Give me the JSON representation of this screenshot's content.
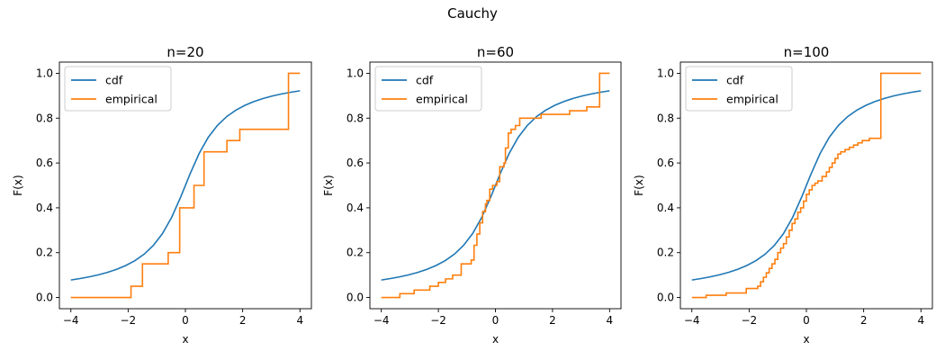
{
  "suptitle": "Cauchy",
  "colors": {
    "cdf": "#1f77b4",
    "empirical": "#ff7f0e"
  },
  "chart_data": [
    {
      "type": "line",
      "title": "n=20",
      "xlabel": "x",
      "ylabel": "F(x)",
      "xlim": [
        -4.4,
        4.4
      ],
      "ylim": [
        -0.05,
        1.05
      ],
      "xticks": [
        -4,
        -2,
        0,
        2,
        4
      ],
      "xtick_labels": [
        "−4",
        "−2",
        "0",
        "2",
        "4"
      ],
      "yticks": [
        0.0,
        0.2,
        0.4,
        0.6,
        0.8,
        1.0
      ],
      "ytick_labels": [
        "0.0",
        "0.2",
        "0.4",
        "0.6",
        "0.8",
        "1.0"
      ],
      "legend": {
        "placement": "upper-left",
        "entries": [
          "cdf",
          "empirical"
        ]
      },
      "series": [
        {
          "name": "cdf",
          "kind": "cauchy-cdf",
          "x_range": [
            -4,
            4
          ]
        },
        {
          "name": "empirical",
          "kind": "step",
          "x": [
            -4,
            -1.9,
            -1.5,
            -0.6,
            -0.2,
            0.3,
            0.65,
            1.45,
            1.9,
            3.6,
            4
          ],
          "y": [
            0,
            0.05,
            0.15,
            0.2,
            0.4,
            0.5,
            0.65,
            0.7,
            0.75,
            1.0,
            1.0
          ]
        }
      ]
    },
    {
      "type": "line",
      "title": "n=60",
      "xlabel": "x",
      "ylabel": "F(x)",
      "xlim": [
        -4.4,
        4.4
      ],
      "ylim": [
        -0.05,
        1.05
      ],
      "xticks": [
        -4,
        -2,
        0,
        2,
        4
      ],
      "xtick_labels": [
        "−4",
        "−2",
        "0",
        "2",
        "4"
      ],
      "yticks": [
        0.0,
        0.2,
        0.4,
        0.6,
        0.8,
        1.0
      ],
      "ytick_labels": [
        "0.0",
        "0.2",
        "0.4",
        "0.6",
        "0.8",
        "1.0"
      ],
      "legend": {
        "placement": "upper-left",
        "entries": [
          "cdf",
          "empirical"
        ]
      },
      "series": [
        {
          "name": "cdf",
          "kind": "cauchy-cdf",
          "x_range": [
            -4,
            4
          ]
        },
        {
          "name": "empirical",
          "kind": "step",
          "x": [
            -4,
            -3.35,
            -2.85,
            -2.3,
            -2.0,
            -1.75,
            -1.5,
            -1.2,
            -0.85,
            -0.75,
            -0.65,
            -0.55,
            -0.45,
            -0.35,
            -0.3,
            -0.2,
            -0.1,
            0.05,
            0.15,
            0.3,
            0.35,
            0.45,
            0.55,
            0.7,
            0.85,
            1.0,
            1.35,
            1.6,
            2.6,
            3.2,
            3.65,
            4
          ],
          "y": [
            0,
            0.017,
            0.033,
            0.05,
            0.067,
            0.083,
            0.1,
            0.15,
            0.167,
            0.233,
            0.283,
            0.333,
            0.383,
            0.417,
            0.433,
            0.483,
            0.5,
            0.517,
            0.583,
            0.6,
            0.667,
            0.733,
            0.75,
            0.767,
            0.8,
            0.8,
            0.8,
            0.817,
            0.833,
            0.85,
            1.0,
            1.0
          ]
        }
      ]
    },
    {
      "type": "line",
      "title": "n=100",
      "xlabel": "x",
      "ylabel": "F(x)",
      "xlim": [
        -4.4,
        4.4
      ],
      "ylim": [
        -0.05,
        1.05
      ],
      "xticks": [
        -4,
        -2,
        0,
        2,
        4
      ],
      "xtick_labels": [
        "−4",
        "−2",
        "0",
        "2",
        "4"
      ],
      "yticks": [
        0.0,
        0.2,
        0.4,
        0.6,
        0.8,
        1.0
      ],
      "ytick_labels": [
        "0.0",
        "0.2",
        "0.4",
        "0.6",
        "0.8",
        "1.0"
      ],
      "legend": {
        "placement": "upper-left",
        "entries": [
          "cdf",
          "empirical"
        ]
      },
      "series": [
        {
          "name": "cdf",
          "kind": "cauchy-cdf",
          "x_range": [
            -4,
            4
          ]
        },
        {
          "name": "empirical",
          "kind": "step",
          "x": [
            -4,
            -3.5,
            -2.8,
            -2.1,
            -1.7,
            -1.6,
            -1.5,
            -1.4,
            -1.3,
            -1.2,
            -1.1,
            -1.0,
            -0.9,
            -0.8,
            -0.7,
            -0.6,
            -0.5,
            -0.4,
            -0.3,
            -0.2,
            -0.1,
            0.0,
            0.1,
            0.2,
            0.3,
            0.4,
            0.55,
            0.7,
            0.8,
            0.9,
            1.0,
            1.1,
            1.2,
            1.35,
            1.5,
            1.65,
            1.8,
            1.95,
            2.05,
            2.2,
            2.6,
            2.65,
            4
          ],
          "y": [
            0,
            0.01,
            0.02,
            0.04,
            0.05,
            0.07,
            0.09,
            0.11,
            0.13,
            0.15,
            0.17,
            0.2,
            0.22,
            0.24,
            0.27,
            0.3,
            0.33,
            0.35,
            0.38,
            0.4,
            0.43,
            0.46,
            0.48,
            0.5,
            0.51,
            0.52,
            0.54,
            0.56,
            0.58,
            0.6,
            0.62,
            0.64,
            0.65,
            0.66,
            0.67,
            0.68,
            0.69,
            0.7,
            0.7,
            0.71,
            1.0,
            1.0,
            1.0
          ]
        }
      ]
    }
  ]
}
